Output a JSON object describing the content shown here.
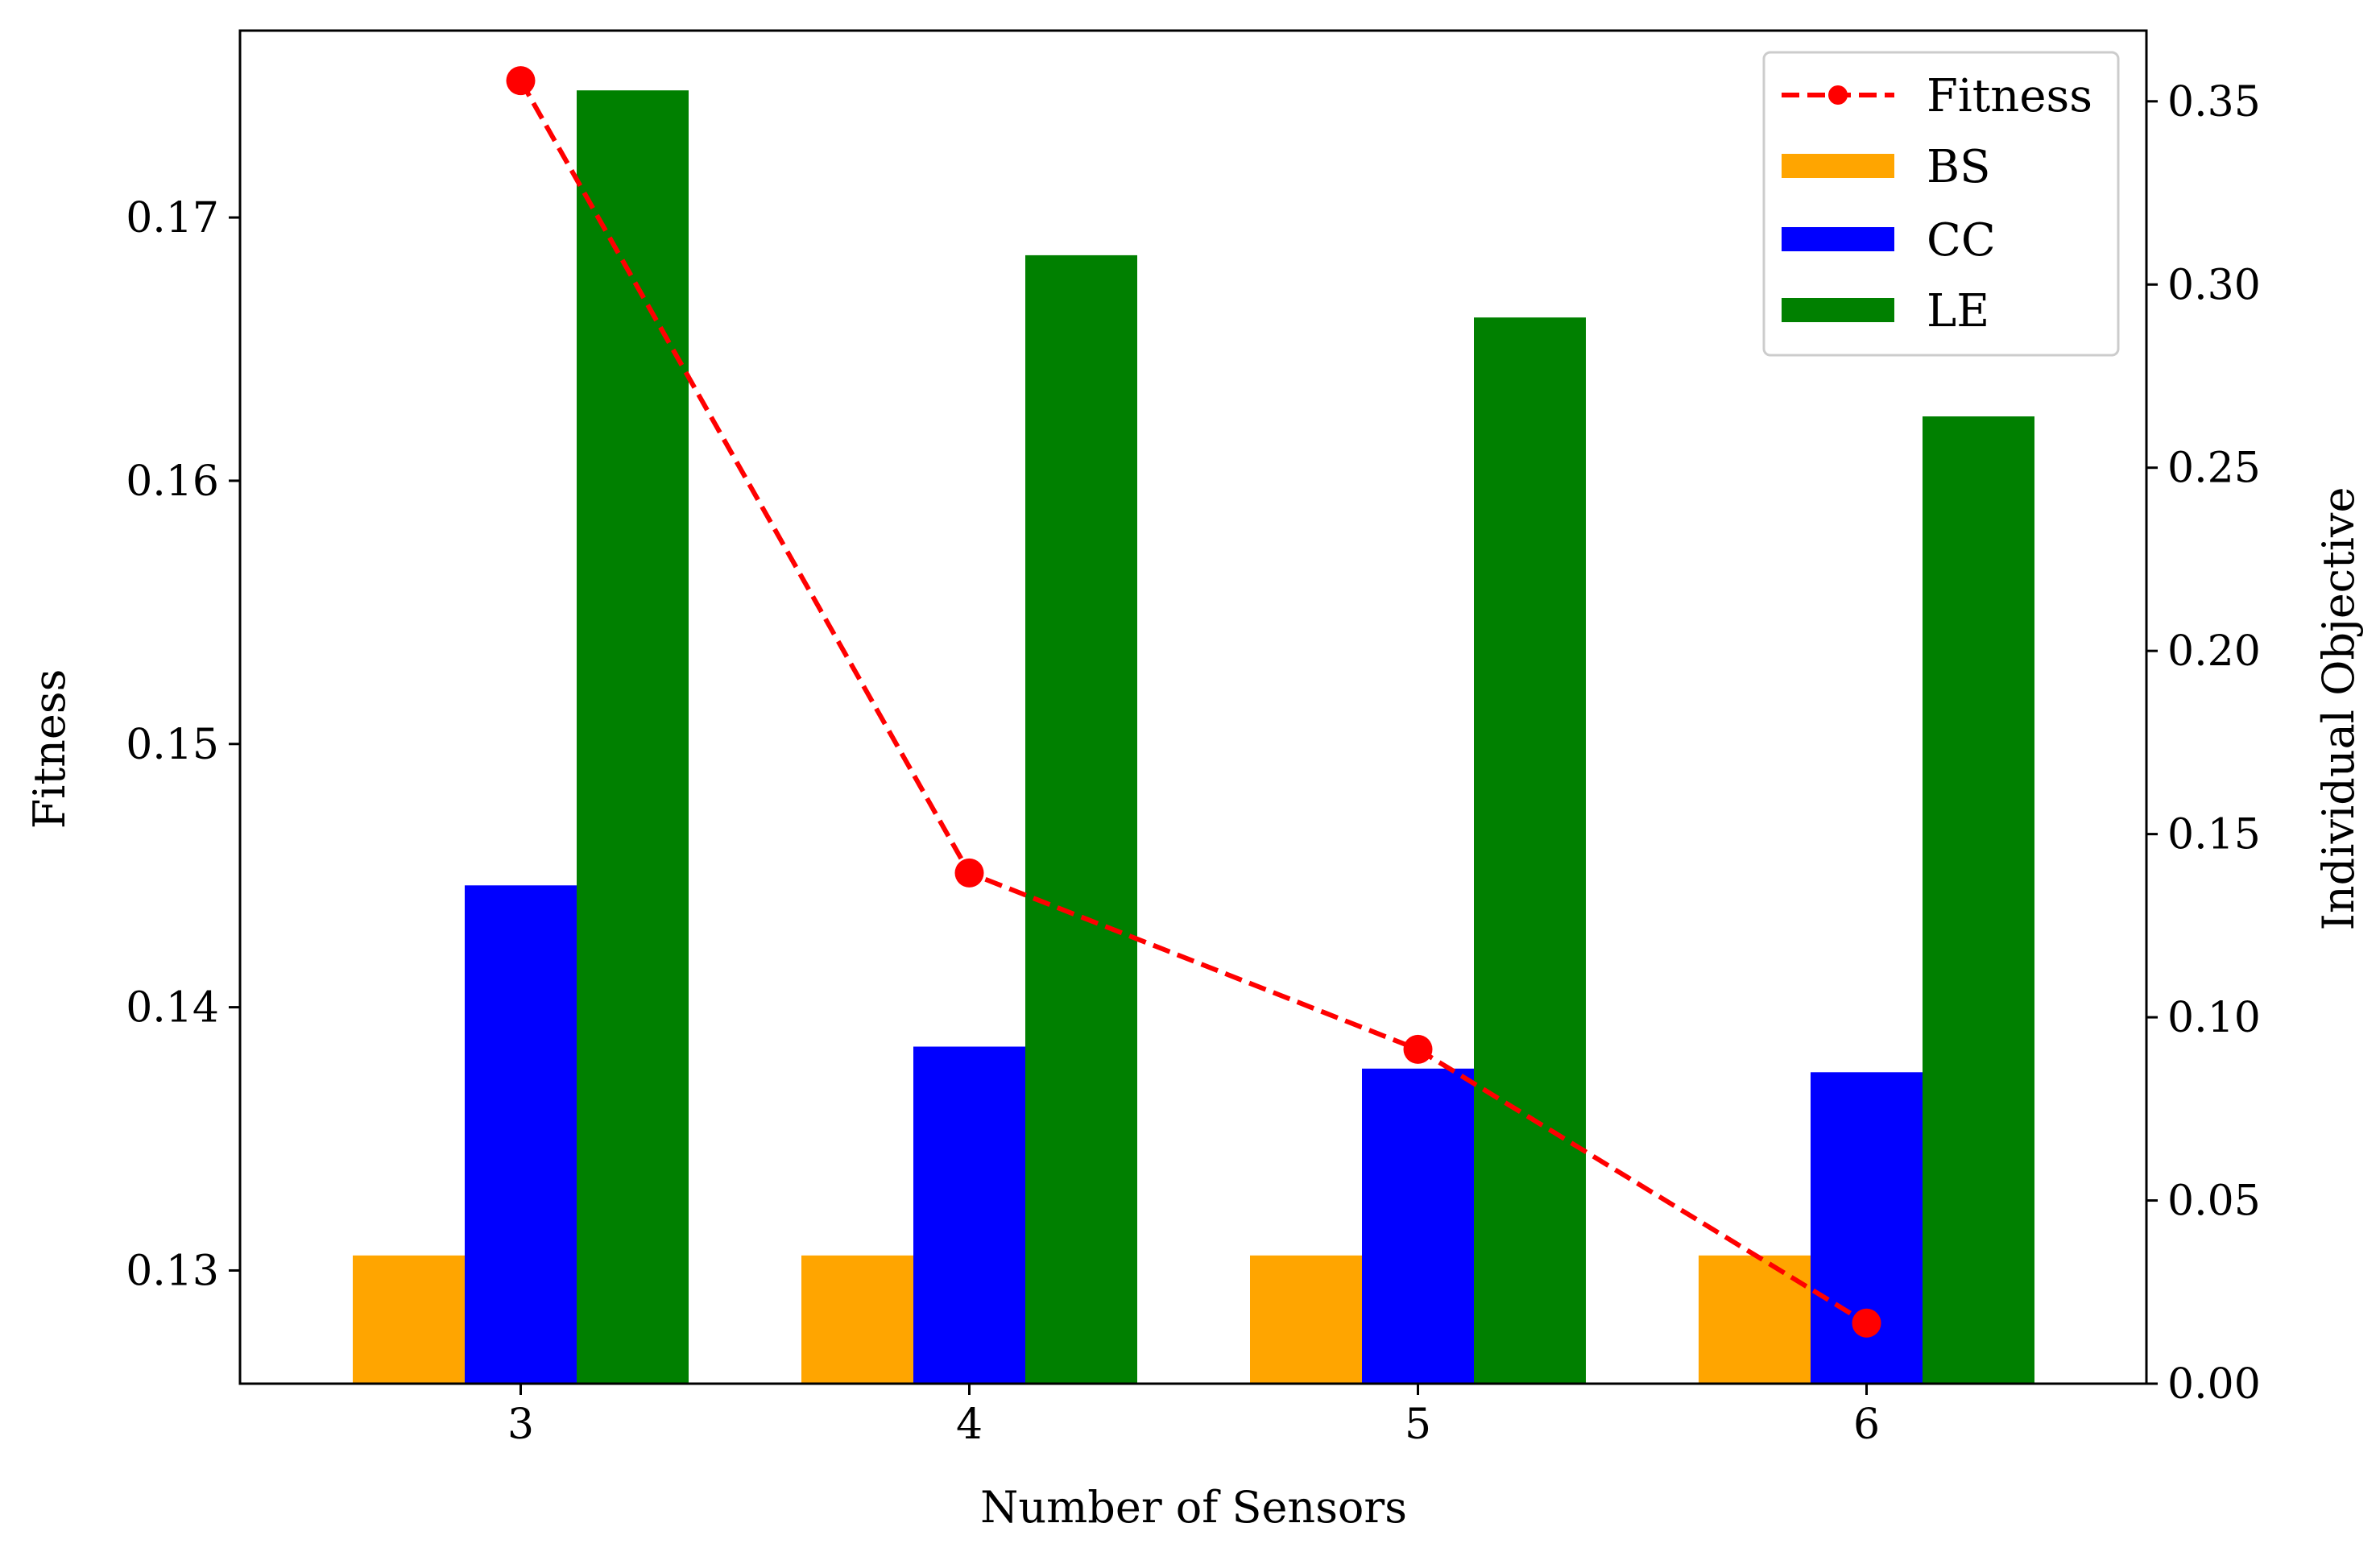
{
  "chart_data": {
    "type": "bar+line",
    "title": "",
    "xlabel": "Number of Sensors",
    "ylabel_left": "Fitness",
    "ylabel_right": "Individual Objective",
    "categories": [
      "3",
      "4",
      "5",
      "6"
    ],
    "ylim_left": [
      0.1257,
      0.1771
    ],
    "ylim_right": [
      0.0,
      0.3693
    ],
    "yticks_left": [
      0.13,
      0.14,
      0.15,
      0.16,
      0.17
    ],
    "yticks_left_labels": [
      "0.13",
      "0.14",
      "0.15",
      "0.16",
      "0.17"
    ],
    "yticks_right": [
      0.0,
      0.05,
      0.1,
      0.15,
      0.2,
      0.25,
      0.3,
      0.35
    ],
    "yticks_right_labels": [
      "0.00",
      "0.05",
      "0.10",
      "0.15",
      "0.20",
      "0.25",
      "0.30",
      "0.35"
    ],
    "line": {
      "name": "Fitness",
      "axis": "left",
      "style": "dashed",
      "marker": "circle",
      "color": "#ff0000",
      "values": [
        0.1752,
        0.1451,
        0.1384,
        0.128
      ]
    },
    "bar_series": [
      {
        "name": "BS",
        "axis": "right",
        "color": "#ffa500",
        "values": [
          0.035,
          0.035,
          0.035,
          0.035
        ]
      },
      {
        "name": "CC",
        "axis": "right",
        "color": "#0000ff",
        "values": [
          0.136,
          0.092,
          0.086,
          0.085
        ]
      },
      {
        "name": "LE",
        "axis": "right",
        "color": "#008000",
        "values": [
          0.353,
          0.308,
          0.291,
          0.264
        ]
      }
    ],
    "legend": {
      "position": "top-right",
      "entries": [
        "Fitness",
        "BS",
        "CC",
        "LE"
      ]
    },
    "grid": false
  }
}
